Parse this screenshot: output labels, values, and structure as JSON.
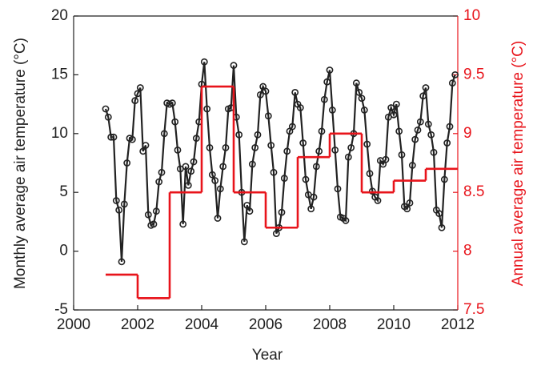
{
  "chart_data": {
    "type": "line",
    "xlabel": "Year",
    "ylabel": "Monthly average air temperature (°C)",
    "y2label": "Annual average air temperature (°C)",
    "xlim": [
      2000,
      2012
    ],
    "xticks": [
      2000,
      2002,
      2004,
      2006,
      2008,
      2010,
      2012
    ],
    "ylim": [
      -5,
      20
    ],
    "yticks": [
      -5,
      0,
      5,
      10,
      15,
      20
    ],
    "y2lim": [
      7.5,
      10
    ],
    "y2ticks": [
      7.5,
      8,
      8.5,
      9,
      9.5,
      10
    ],
    "grid": false,
    "series": [
      {
        "color": "#222222",
        "marker": "circle",
        "x": [
          2001,
          2001.083,
          2001.167,
          2001.25,
          2001.333,
          2001.417,
          2001.5,
          2001.583,
          2001.667,
          2001.75,
          2001.833,
          2001.917,
          2002,
          2002.083,
          2002.167,
          2002.25,
          2002.333,
          2002.417,
          2002.5,
          2002.583,
          2002.667,
          2002.75,
          2002.833,
          2002.917,
          2003,
          2003.083,
          2003.167,
          2003.25,
          2003.333,
          2003.417,
          2003.5,
          2003.583,
          2003.667,
          2003.75,
          2003.833,
          2003.917,
          2004,
          2004.083,
          2004.167,
          2004.25,
          2004.333,
          2004.417,
          2004.5,
          2004.583,
          2004.667,
          2004.75,
          2004.833,
          2004.917,
          2005,
          2005.083,
          2005.167,
          2005.25,
          2005.333,
          2005.417,
          2005.5,
          2005.583,
          2005.667,
          2005.75,
          2005.833,
          2005.917,
          2006,
          2006.083,
          2006.167,
          2006.25,
          2006.333,
          2006.417,
          2006.5,
          2006.583,
          2006.667,
          2006.75,
          2006.833,
          2006.917,
          2007,
          2007.083,
          2007.167,
          2007.25,
          2007.333,
          2007.417,
          2007.5,
          2007.583,
          2007.667,
          2007.75,
          2007.833,
          2007.917,
          2008,
          2008.083,
          2008.167,
          2008.25,
          2008.333,
          2008.417,
          2008.5,
          2008.583,
          2008.667,
          2008.75,
          2008.833,
          2008.917,
          2009,
          2009.083,
          2009.167,
          2009.25,
          2009.333,
          2009.417,
          2009.5,
          2009.583,
          2009.667,
          2009.75,
          2009.833,
          2009.917,
          2010,
          2010.083,
          2010.167,
          2010.25,
          2010.333,
          2010.417,
          2010.5,
          2010.583,
          2010.667,
          2010.75,
          2010.833,
          2010.917,
          2011,
          2011.083,
          2011.167,
          2011.25,
          2011.333,
          2011.417,
          2011.5,
          2011.583,
          2011.667,
          2011.75,
          2011.833,
          2011.917
        ],
        "values": [
          12.1,
          11.4,
          9.7,
          9.7,
          4.3,
          3.5,
          -0.9,
          4.0,
          7.5,
          9.6,
          9.5,
          12.8,
          13.4,
          13.9,
          8.5,
          9.0,
          3.1,
          2.2,
          2.3,
          3.4,
          5.9,
          6.7,
          10.0,
          12.6,
          12.5,
          12.6,
          11.0,
          8.6,
          7.0,
          2.3,
          7.2,
          5.6,
          6.8,
          7.6,
          9.6,
          11.0,
          14.2,
          16.1,
          12.1,
          8.8,
          6.5,
          6.0,
          2.8,
          5.3,
          7.2,
          8.8,
          12.1,
          12.2,
          15.8,
          11.4,
          9.9,
          5.0,
          0.8,
          3.9,
          3.4,
          7.4,
          8.8,
          9.9,
          13.3,
          14.0,
          13.6,
          11.5,
          9.0,
          6.7,
          1.5,
          2.0,
          3.3,
          6.2,
          8.5,
          10.2,
          10.6,
          13.5,
          12.5,
          12.2,
          9.2,
          6.1,
          4.8,
          3.6,
          4.6,
          7.2,
          8.5,
          10.2,
          12.9,
          14.4,
          15.4,
          12.0,
          8.6,
          5.3,
          2.9,
          2.8,
          2.6,
          8.0,
          8.8,
          10.0,
          14.3,
          13.5,
          13.0,
          12.0,
          9.1,
          6.6,
          5.1,
          4.6,
          4.3,
          7.7,
          7.4,
          7.8,
          11.4,
          12.2,
          11.6,
          12.5,
          10.2,
          8.2,
          3.8,
          3.6,
          4.1,
          7.3,
          9.5,
          10.3,
          11.0,
          13.2,
          13.9,
          10.8,
          9.9,
          8.4,
          3.5,
          3.2,
          2.0,
          6.1,
          9.2,
          10.6,
          14.3,
          15.0
        ]
      },
      {
        "color": "#e8141b",
        "axis": "y2",
        "step": "post",
        "x": [
          2001,
          2002,
          2003,
          2004,
          2005,
          2006,
          2007,
          2008,
          2009,
          2010,
          2011
        ],
        "values": [
          7.8,
          7.6,
          8.5,
          9.4,
          8.5,
          8.2,
          8.8,
          9.0,
          8.5,
          8.6,
          8.7
        ]
      }
    ]
  }
}
